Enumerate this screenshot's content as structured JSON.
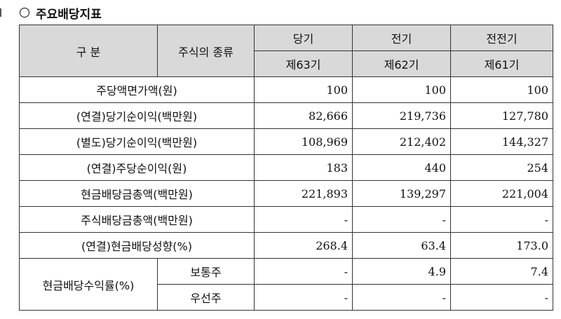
{
  "title": "주요배당지표",
  "header": {
    "col_category": "구  분",
    "col_stock_type": "주식의 종류",
    "periods": [
      {
        "name": "당기",
        "term": "제63기"
      },
      {
        "name": "전기",
        "term": "제62기"
      },
      {
        "name": "전전기",
        "term": "제61기"
      }
    ]
  },
  "rows": [
    {
      "label": "주당액면가액(원)",
      "values": [
        "100",
        "100",
        "100"
      ]
    },
    {
      "label": "(연결)당기순이익(백만원)",
      "values": [
        "82,666",
        "219,736",
        "127,780"
      ]
    },
    {
      "label": "(별도)당기순이익(백만원)",
      "values": [
        "108,969",
        "212,402",
        "144,327"
      ]
    },
    {
      "label": "(연결)주당순이익(원)",
      "values": [
        "183",
        "440",
        "254"
      ]
    },
    {
      "label": "현금배당금총액(백만원)",
      "values": [
        "221,893",
        "139,297",
        "221,004"
      ]
    },
    {
      "label": "주식배당금총액(백만원)",
      "values": [
        "-",
        "-",
        "-"
      ]
    },
    {
      "label": "(연결)현금배당성향(%)",
      "values": [
        "268.4",
        "63.4",
        "173.0"
      ]
    }
  ],
  "yield_group": {
    "label": "현금배당수익률(%)",
    "subrows": [
      {
        "label": "보통주",
        "values": [
          "-",
          "4.9",
          "7.4"
        ]
      },
      {
        "label": "우선주",
        "values": [
          "-",
          "-",
          "-"
        ]
      }
    ]
  }
}
